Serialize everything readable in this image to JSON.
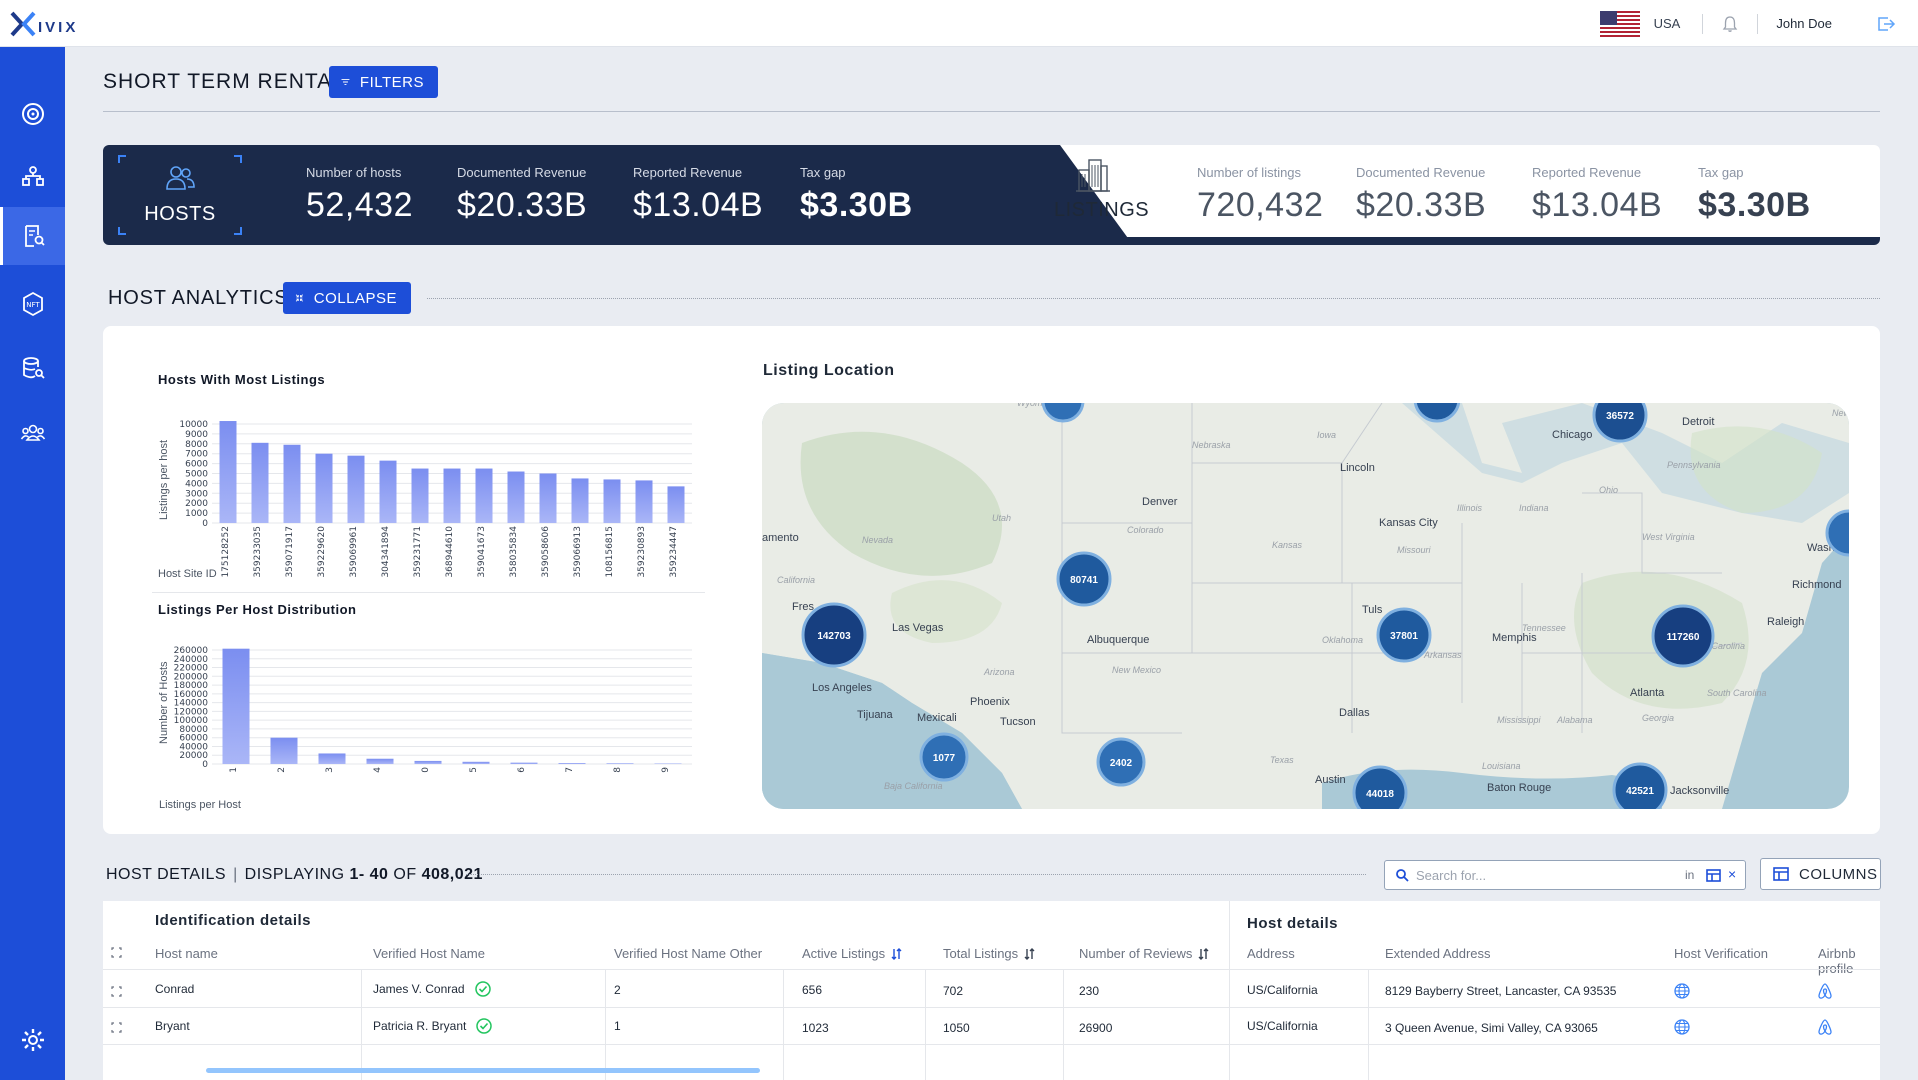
{
  "brand": {
    "name": "IVIX"
  },
  "topbar": {
    "country": "USA",
    "user": "John Doe"
  },
  "sidebar": {
    "items": [
      {
        "name": "dashboard"
      },
      {
        "name": "network"
      },
      {
        "name": "short-term-rental"
      },
      {
        "name": "nft"
      },
      {
        "name": "database-search"
      },
      {
        "name": "users"
      },
      {
        "name": "settings"
      }
    ]
  },
  "page": {
    "title": "SHORT TERM RENTAL",
    "filters_label": "FILTERS"
  },
  "stats": {
    "hosts_label": "HOSTS",
    "hosts": [
      {
        "label": "Number of hosts",
        "value": "52,432"
      },
      {
        "label": "Documented Revenue",
        "value": "$20.33B"
      },
      {
        "label": "Reported Revenue",
        "value": "$13.04B"
      },
      {
        "label": "Tax gap",
        "value": "$3.30B"
      }
    ],
    "listings_label": "LISTINGS",
    "listings": [
      {
        "label": "Number of listings",
        "value": "720,432"
      },
      {
        "label": "Documented Revenue",
        "value": "$20.33B"
      },
      {
        "label": "Reported Revenue",
        "value": "$13.04B"
      },
      {
        "label": "Tax gap",
        "value": "$3.30B"
      }
    ]
  },
  "analytics": {
    "title": "HOST ANALYTICS",
    "collapse_label": "COLLAPSE",
    "map_title": "Listing Location"
  },
  "chart_data": [
    {
      "type": "bar",
      "title": "Hosts With Most Listings",
      "xlabel": "Host Site ID",
      "ylabel": "Listings per host",
      "categories": [
        "175128252",
        "359233035",
        "359071917",
        "359229620",
        "359069961",
        "304341894",
        "359231771",
        "368944610",
        "359041673",
        "358035834",
        "359058606",
        "359066913",
        "108156815",
        "359230893",
        "359234447"
      ],
      "values": [
        10300,
        8100,
        7900,
        7000,
        6800,
        6300,
        5500,
        5500,
        5500,
        5200,
        5000,
        4500,
        4400,
        4300,
        3700
      ],
      "yticks": [
        "10000",
        "9000",
        "8000",
        "7000",
        "6000",
        "5000",
        "4000",
        "3000",
        "2000",
        "1000",
        "0"
      ],
      "ylim": [
        0,
        10000
      ]
    },
    {
      "type": "bar",
      "title": "Listings Per Host Distribution",
      "xlabel": "Listings per Host",
      "ylabel": "Number of Hosts",
      "categories": [
        "1",
        "2",
        "3",
        "4",
        "0",
        "5",
        "6",
        "7",
        "8",
        "9"
      ],
      "values": [
        263000,
        60000,
        24000,
        12000,
        7000,
        5000,
        3000,
        2000,
        1500,
        1000
      ],
      "yticks": [
        "260000",
        "240000",
        "220000",
        "200000",
        "180000",
        "160000",
        "140000",
        "120000",
        "100000",
        "80000",
        "60000",
        "40000",
        "20000",
        "0"
      ],
      "ylim": [
        0,
        260000
      ]
    }
  ],
  "map": {
    "cities": [
      "Chicago",
      "Detroit",
      "Lincoln",
      "Denver",
      "Kansas City",
      "Washing",
      "Richmond",
      "Raleigh",
      "Memphis",
      "Las Vegas",
      "Albuquerque",
      "Los Angeles",
      "Phoenix",
      "Tucson",
      "Mexicali",
      "Dallas",
      "Atlanta",
      "Austin",
      "Baton Rouge",
      "Jacksonville",
      "Tijuana",
      "Fres",
      "amento",
      "Tuls"
    ],
    "states": [
      "Wyoming",
      "Iowa",
      "Nebraska",
      "Utah",
      "Colorado",
      "Kansas",
      "Illinois",
      "Indiana",
      "Ohio",
      "Pennsylvania",
      "West Virginia",
      "Missouri",
      "Nevada",
      "California",
      "Oklahoma",
      "Arkansas",
      "Tennessee",
      "North Carolina",
      "Arizona",
      "New Mexico",
      "Texas",
      "Mississippi",
      "Alabama",
      "Georgia",
      "South Carolina",
      "Louisiana",
      "Baja California",
      "New"
    ],
    "clusters": [
      "36572",
      "80741",
      "142703",
      "37801",
      "117260",
      "1077",
      "2402",
      "44018",
      "42521"
    ]
  },
  "details": {
    "title": "HOST DETAILS",
    "displaying_prefix": "DISPLAYING",
    "range": "1- 40",
    "of_label": "OF",
    "total": "408,021",
    "search_placeholder": "Search for...",
    "search_in": "in",
    "columns_label": "COLUMNS",
    "group_identification": "Identification details",
    "group_host": "Host details",
    "headers": [
      "Host name",
      "Verified Host Name",
      "Verified Host Name Other",
      "Active Listings",
      "Total Listings",
      "Number of Reviews",
      "Address",
      "Extended Address",
      "Host Verification",
      "Airbnb profile"
    ],
    "rows": [
      {
        "host_name": "Conrad",
        "verified_name": "James V. Conrad",
        "other": "2",
        "active": "656",
        "total": "702",
        "reviews": "230",
        "address": "US/California",
        "extended": "8129 Bayberry Street, Lancaster, CA 93535"
      },
      {
        "host_name": "Bryant",
        "verified_name": "Patricia R. Bryant",
        "other": "1",
        "active": "1023",
        "total": "1050",
        "reviews": "26900",
        "address": "US/California",
        "extended": "3 Queen Avenue, Simi Valley, CA 93065"
      }
    ]
  },
  "colors": {
    "primary": "#1d4ed8",
    "navy": "#1b2a4a",
    "bar": "#8b9cf0",
    "cluster": "#2f6fb5"
  }
}
